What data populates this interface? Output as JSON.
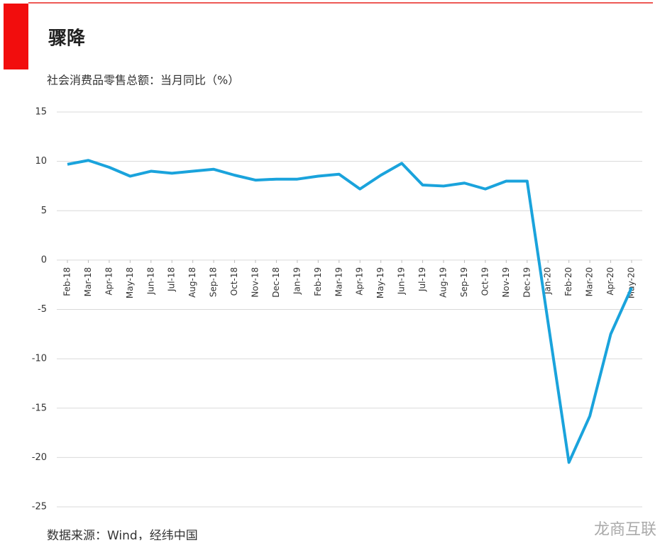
{
  "chart_data": {
    "type": "line",
    "title": "骤降",
    "subtitle": "社会消费品零售总额：当月同比（%）",
    "categories": [
      "Feb-18",
      "Mar-18",
      "Apr-18",
      "May-18",
      "Jun-18",
      "Jul-18",
      "Aug-18",
      "Sep-18",
      "Oct-18",
      "Nov-18",
      "Dec-18",
      "Jan-19",
      "Feb-19",
      "Mar-19",
      "Apr-19",
      "May-19",
      "Jun-19",
      "Jul-19",
      "Aug-19",
      "Sep-19",
      "Oct-19",
      "Nov-19",
      "Dec-19",
      "Jan-20",
      "Feb-20",
      "Mar-20",
      "Apr-20",
      "May-20"
    ],
    "values": [
      9.7,
      10.1,
      9.4,
      8.5,
      9.0,
      8.8,
      9.0,
      9.2,
      8.6,
      8.1,
      8.2,
      8.2,
      8.5,
      8.7,
      7.2,
      8.6,
      9.8,
      7.6,
      7.5,
      7.8,
      7.2,
      8.0,
      8.0,
      -6.3,
      -20.5,
      -15.8,
      -7.5,
      -2.8
    ],
    "color": "#1aa3dc",
    "ylim": [
      -25,
      15
    ],
    "yticks": [
      -25,
      -20,
      -15,
      -10,
      -5,
      0,
      5,
      10,
      15
    ],
    "grid": true,
    "source": "数据来源：Wind，经纬中国",
    "watermark": "龙商互联"
  }
}
